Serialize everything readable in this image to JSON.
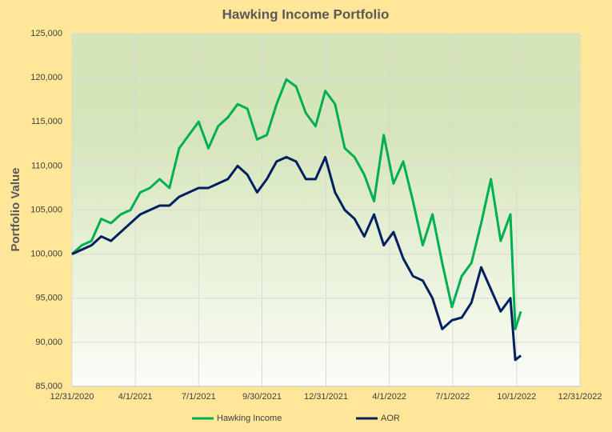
{
  "chart_data": {
    "type": "line",
    "title": "Hawking Income Portfolio",
    "y_label": "Portfolio Value",
    "x": [
      "12/31/2020",
      "1/14/2021",
      "1/28/2021",
      "2/11/2021",
      "2/25/2021",
      "3/11/2021",
      "3/25/2021",
      "4/8/2021",
      "4/22/2021",
      "5/6/2021",
      "5/20/2021",
      "6/3/2021",
      "6/17/2021",
      "7/1/2021",
      "7/15/2021",
      "7/29/2021",
      "8/12/2021",
      "8/26/2021",
      "9/9/2021",
      "9/23/2021",
      "10/7/2021",
      "10/21/2021",
      "11/4/2021",
      "11/18/2021",
      "12/2/2021",
      "12/16/2021",
      "12/30/2021",
      "1/13/2022",
      "1/27/2022",
      "2/10/2022",
      "2/24/2022",
      "3/10/2022",
      "3/24/2022",
      "4/7/2022",
      "4/21/2022",
      "5/5/2022",
      "5/19/2022",
      "6/2/2022",
      "6/16/2022",
      "6/30/2022",
      "7/14/2022",
      "7/28/2022",
      "8/11/2022",
      "8/25/2022",
      "9/8/2022",
      "9/22/2022",
      "9/29/2022",
      "10/7/2022"
    ],
    "series": [
      {
        "name": "Hawking Income",
        "color": "#00b050",
        "values": [
          100000,
          101000,
          101500,
          104000,
          103500,
          104500,
          105000,
          107000,
          107500,
          108500,
          107500,
          112000,
          113500,
          115000,
          112000,
          114500,
          115500,
          117000,
          116500,
          113000,
          113500,
          117000,
          119800,
          119000,
          116000,
          114500,
          118500,
          117000,
          112000,
          111000,
          109000,
          106000,
          113500,
          108000,
          110500,
          106000,
          101000,
          104500,
          99000,
          94000,
          97500,
          99000,
          103500,
          108500,
          101500,
          104500,
          91500,
          93500
        ]
      },
      {
        "name": "AOR",
        "color": "#002060",
        "values": [
          100000,
          100500,
          101000,
          102000,
          101500,
          102500,
          103500,
          104500,
          105000,
          105500,
          105500,
          106500,
          107000,
          107500,
          107500,
          108000,
          108500,
          110000,
          109000,
          107000,
          108500,
          110500,
          111000,
          110500,
          108500,
          108500,
          111000,
          107000,
          105000,
          104000,
          102000,
          104500,
          101000,
          102500,
          99500,
          97500,
          97000,
          95000,
          91500,
          92500,
          92800,
          94500,
          98500,
          96000,
          93500,
          95000,
          88000,
          88500
        ]
      }
    ],
    "xlim": [
      "12/31/2020",
      "12/31/2022"
    ],
    "xticks": [
      "12/31/2020",
      "4/1/2021",
      "7/1/2021",
      "9/30/2021",
      "12/31/2021",
      "4/1/2022",
      "7/1/2022",
      "10/1/2022",
      "12/31/2022"
    ],
    "ylim": [
      85000,
      125000
    ],
    "yticks": [
      {
        "value": 85000,
        "label": "85,000"
      },
      {
        "value": 90000,
        "label": "90,000"
      },
      {
        "value": 95000,
        "label": "95,000"
      },
      {
        "value": 100000,
        "label": "100,000"
      },
      {
        "value": 105000,
        "label": "105,000"
      },
      {
        "value": 110000,
        "label": "110,000"
      },
      {
        "value": 115000,
        "label": "115,000"
      },
      {
        "value": 120000,
        "label": "120,000"
      },
      {
        "value": 125000,
        "label": "125,000"
      }
    ],
    "grid": true,
    "legend": "bottom"
  }
}
